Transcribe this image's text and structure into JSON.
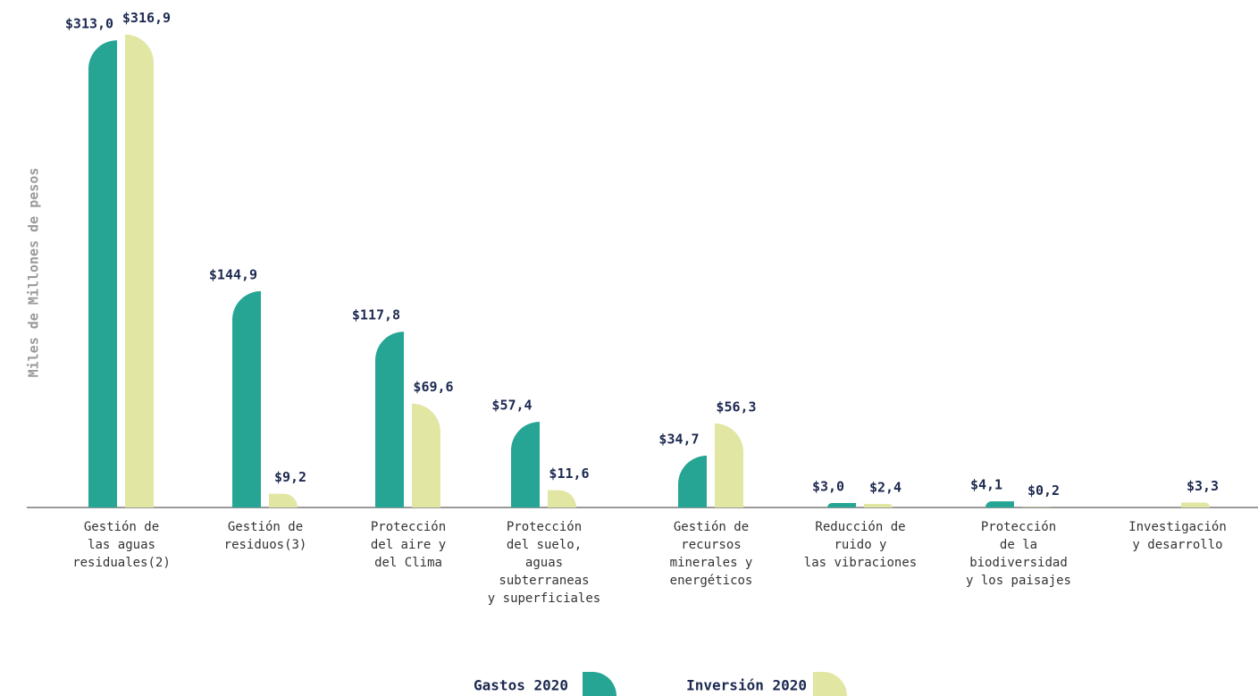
{
  "chart_data": {
    "type": "bar",
    "y_label": "Miles de Millones de pesos",
    "categories": [
      [
        "Gestión de",
        "las aguas",
        "residuales(2)"
      ],
      [
        "Gestión de",
        "residuos(3)"
      ],
      [
        "Protección",
        "del aire y",
        "del Clima"
      ],
      [
        "Protección",
        "del suelo,",
        "aguas",
        "subterraneas",
        "y superficiales"
      ],
      [
        "Gestión de",
        "recursos",
        "minerales y",
        "energéticos"
      ],
      [
        "Reducción de",
        "ruido y",
        "las vibraciones"
      ],
      [
        "Protección",
        "de la",
        "biodiversidad",
        "y los paisajes"
      ],
      [
        "Investigación",
        "y desarrollo"
      ]
    ],
    "series": [
      {
        "name": "Gastos 2020",
        "color": "#26a595",
        "values": [
          313.0,
          144.9,
          117.8,
          57.4,
          34.7,
          3.0,
          4.1,
          null
        ],
        "value_labels": [
          "$313,0",
          "$144,9",
          "$117,8",
          "$57,4",
          "$34,7",
          "$3,0",
          "$4,1",
          null
        ]
      },
      {
        "name": "Inversión 2020",
        "color": "#e1e6a3",
        "values": [
          316.9,
          9.2,
          69.6,
          11.6,
          56.3,
          2.4,
          0.2,
          3.3
        ],
        "value_labels": [
          "$316,9",
          "$9,2",
          "$69,6",
          "$11,6",
          "$56,3",
          "$2,4",
          "$0,2",
          "$3,3"
        ]
      }
    ],
    "ylim": [
      0,
      340
    ]
  }
}
